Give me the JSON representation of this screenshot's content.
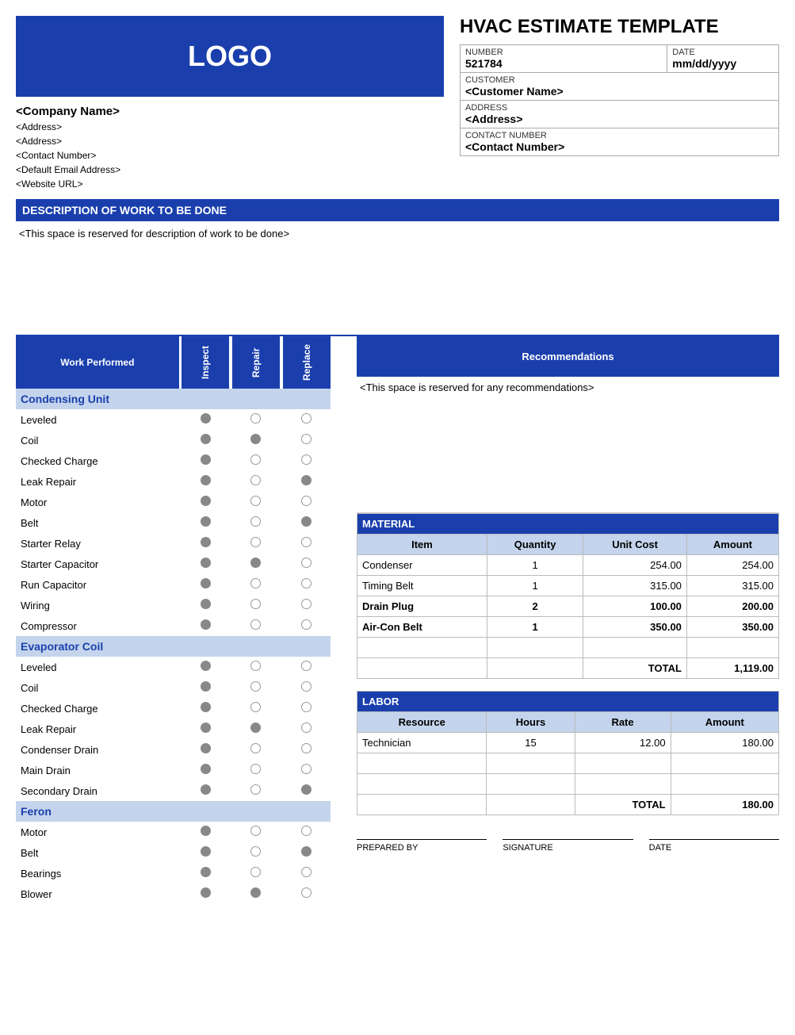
{
  "colors": {
    "primary": "#1a3fad",
    "header_light": "#c3d4ec",
    "dot_fill": "#888888",
    "dot_border": "#999999"
  },
  "logo": {
    "text": "LOGO"
  },
  "company": {
    "name": "<Company Name>",
    "lines": [
      "<Address>",
      "<Address>",
      "<Contact Number>",
      "<Default Email Address>",
      "<Website URL>"
    ]
  },
  "title": "HVAC ESTIMATE TEMPLATE",
  "estimate_info": {
    "number_label": "NUMBER",
    "number": "521784",
    "date_label": "DATE",
    "date": "mm/dd/yyyy",
    "customer_label": "CUSTOMER",
    "customer": "<Customer Name>",
    "address_label": "ADDRESS",
    "address": "<Address>",
    "contact_label": "CONTACT NUMBER",
    "contact": "<Contact Number>"
  },
  "description": {
    "heading": "DESCRIPTION OF WORK TO BE DONE",
    "placeholder": "<This space is reserved for description of work to be done>"
  },
  "work_performed": {
    "heading": "Work Performed",
    "cols": [
      "Inspect",
      "Repair",
      "Replace"
    ],
    "groups": [
      {
        "name": "Condensing Unit",
        "rows": [
          {
            "label": "Leveled",
            "v": [
              true,
              false,
              false
            ]
          },
          {
            "label": "Coil",
            "v": [
              true,
              true,
              false
            ]
          },
          {
            "label": "Checked Charge",
            "v": [
              true,
              false,
              false
            ]
          },
          {
            "label": "Leak Repair",
            "v": [
              true,
              false,
              true
            ]
          },
          {
            "label": "Motor",
            "v": [
              true,
              false,
              false
            ]
          },
          {
            "label": "Belt",
            "v": [
              true,
              false,
              true
            ]
          },
          {
            "label": "Starter Relay",
            "v": [
              true,
              false,
              false
            ]
          },
          {
            "label": "Starter Capacitor",
            "v": [
              true,
              true,
              false
            ]
          },
          {
            "label": "Run Capacitor",
            "v": [
              true,
              false,
              false
            ]
          },
          {
            "label": "Wiring",
            "v": [
              true,
              false,
              false
            ]
          },
          {
            "label": "Compressor",
            "v": [
              true,
              false,
              false
            ]
          }
        ]
      },
      {
        "name": "Evaporator Coil",
        "rows": [
          {
            "label": "Leveled",
            "v": [
              true,
              false,
              false
            ]
          },
          {
            "label": "Coil",
            "v": [
              true,
              false,
              false
            ]
          },
          {
            "label": "Checked Charge",
            "v": [
              true,
              false,
              false
            ]
          },
          {
            "label": "Leak Repair",
            "v": [
              true,
              true,
              false
            ]
          },
          {
            "label": "Condenser Drain",
            "v": [
              true,
              false,
              false
            ]
          },
          {
            "label": "Main Drain",
            "v": [
              true,
              false,
              false
            ]
          },
          {
            "label": "Secondary Drain",
            "v": [
              true,
              false,
              true
            ]
          }
        ]
      },
      {
        "name": "Feron",
        "rows": [
          {
            "label": "Motor",
            "v": [
              true,
              false,
              false
            ]
          },
          {
            "label": "Belt",
            "v": [
              true,
              false,
              true
            ]
          },
          {
            "label": "Bearings",
            "v": [
              true,
              false,
              false
            ]
          },
          {
            "label": "Blower",
            "v": [
              true,
              true,
              false
            ]
          }
        ]
      }
    ]
  },
  "recommendations": {
    "heading": "Recommendations",
    "placeholder": "<This space is reserved for any recommendations>"
  },
  "material": {
    "title": "MATERIAL",
    "cols": [
      "Item",
      "Quantity",
      "Unit Cost",
      "Amount"
    ],
    "rows": [
      {
        "item": "Condenser",
        "qty": "1",
        "unit": "254.00",
        "amt": "254.00",
        "bold": false
      },
      {
        "item": "Timing Belt",
        "qty": "1",
        "unit": "315.00",
        "amt": "315.00",
        "bold": false
      },
      {
        "item": "Drain Plug",
        "qty": "2",
        "unit": "100.00",
        "amt": "200.00",
        "bold": true
      },
      {
        "item": "Air-Con Belt",
        "qty": "1",
        "unit": "350.00",
        "amt": "350.00",
        "bold": true
      }
    ],
    "empty_rows": 1,
    "total_label": "TOTAL",
    "total": "1,119.00"
  },
  "labor": {
    "title": "LABOR",
    "cols": [
      "Resource",
      "Hours",
      "Rate",
      "Amount"
    ],
    "rows": [
      {
        "res": "Technician",
        "hrs": "15",
        "rate": "12.00",
        "amt": "180.00"
      }
    ],
    "empty_rows": 2,
    "total_label": "TOTAL",
    "total": "180.00"
  },
  "signatures": {
    "prepared": "PREPARED BY",
    "signature": "SIGNATURE",
    "date": "DATE"
  }
}
